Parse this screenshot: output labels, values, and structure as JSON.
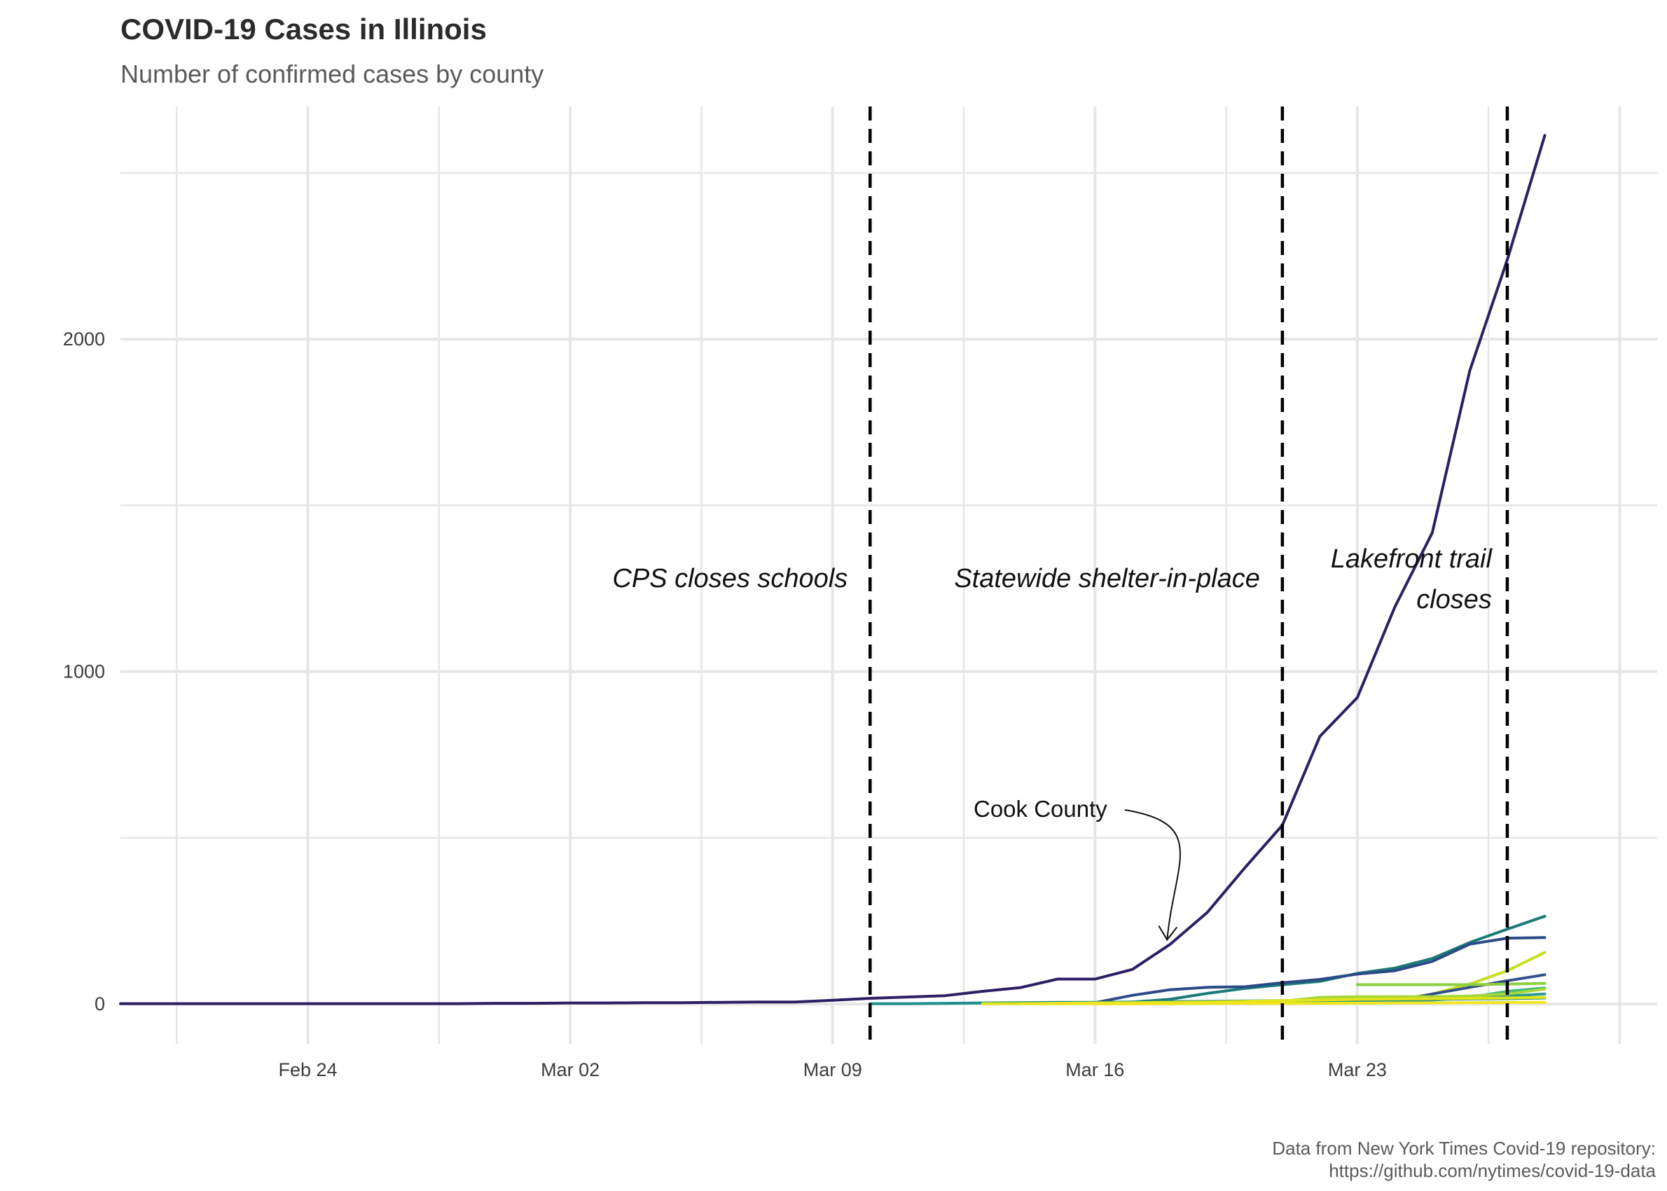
{
  "chart_data": {
    "type": "line",
    "title": "COVID-19 Cases in Illinois",
    "subtitle": "Number of confirmed cases by county",
    "xlabel": "",
    "ylabel": "",
    "x_range": [
      "2020-02-19",
      "2020-03-31"
    ],
    "y_range": [
      -120,
      2700
    ],
    "x_ticks": [
      {
        "date": "2020-02-24",
        "label": "Feb 24"
      },
      {
        "date": "2020-03-02",
        "label": "Mar 02"
      },
      {
        "date": "2020-03-09",
        "label": "Mar 09"
      },
      {
        "date": "2020-03-16",
        "label": "Mar 16"
      },
      {
        "date": "2020-03-23",
        "label": "Mar 23"
      }
    ],
    "y_ticks": [
      0,
      1000,
      2000
    ],
    "grid": true,
    "legend": "none",
    "vlines": [
      {
        "date": "2020-03-10",
        "label": "CPS closes schools",
        "label_side": "left"
      },
      {
        "date": "2020-03-21",
        "label": "Statewide shelter-in-place",
        "label_side": "left"
      },
      {
        "date": "2020-03-27",
        "label": "Lakefront trail closes",
        "label_lines": [
          "Lakefront trail",
          "closes"
        ],
        "label_side": "left"
      }
    ],
    "annotations": [
      {
        "text": "Cook County",
        "arrow_to": {
          "date": "2020-03-18",
          "value": 210
        }
      }
    ],
    "series": [
      {
        "name": "Cook County",
        "color": "#2e1e63",
        "x": [
          "2020-02-19",
          "2020-02-20",
          "2020-02-21",
          "2020-02-22",
          "2020-02-23",
          "2020-02-24",
          "2020-02-25",
          "2020-02-26",
          "2020-02-27",
          "2020-02-28",
          "2020-02-29",
          "2020-03-01",
          "2020-03-02",
          "2020-03-03",
          "2020-03-04",
          "2020-03-05",
          "2020-03-06",
          "2020-03-07",
          "2020-03-08",
          "2020-03-09",
          "2020-03-10",
          "2020-03-11",
          "2020-03-12",
          "2020-03-13",
          "2020-03-14",
          "2020-03-15",
          "2020-03-16",
          "2020-03-17",
          "2020-03-18",
          "2020-03-19",
          "2020-03-20",
          "2020-03-21",
          "2020-03-22",
          "2020-03-23",
          "2020-03-24",
          "2020-03-25",
          "2020-03-26",
          "2020-03-27",
          "2020-03-28"
        ],
        "values": [
          1,
          1,
          1,
          1,
          1,
          1,
          1,
          1,
          1,
          1,
          2,
          2,
          3,
          3,
          4,
          4,
          5,
          6,
          6,
          11,
          17,
          21,
          25,
          38,
          49,
          75,
          75,
          104,
          179,
          276,
          410,
          538,
          805,
          922,
          1194,
          1418,
          1905,
          2239,
          2613
        ]
      },
      {
        "color": "#1a7a78",
        "x": [
          "2020-03-15",
          "2020-03-16",
          "2020-03-17",
          "2020-03-18",
          "2020-03-19",
          "2020-03-20",
          "2020-03-21",
          "2020-03-22",
          "2020-03-23",
          "2020-03-24",
          "2020-03-25",
          "2020-03-26",
          "2020-03-27",
          "2020-03-28"
        ],
        "values": [
          1,
          2,
          6,
          14,
          32,
          47,
          58,
          68,
          92,
          108,
          137,
          185,
          225,
          264
        ]
      },
      {
        "color": "#2b4a87",
        "x": [
          "2020-03-15",
          "2020-03-16",
          "2020-03-17",
          "2020-03-18",
          "2020-03-19",
          "2020-03-20",
          "2020-03-21",
          "2020-03-22",
          "2020-03-23",
          "2020-03-24",
          "2020-03-25",
          "2020-03-26",
          "2020-03-27",
          "2020-03-28"
        ],
        "values": [
          1,
          4,
          26,
          43,
          50,
          52,
          64,
          74,
          90,
          100,
          128,
          180,
          198,
          200
        ]
      },
      {
        "color": "#c7df1f",
        "x": [
          "2020-03-16",
          "2020-03-17",
          "2020-03-18",
          "2020-03-19",
          "2020-03-20",
          "2020-03-21",
          "2020-03-22",
          "2020-03-23",
          "2020-03-24",
          "2020-03-25",
          "2020-03-26",
          "2020-03-27",
          "2020-03-28"
        ],
        "values": [
          1,
          1,
          2,
          3,
          4,
          5,
          6,
          8,
          12,
          30,
          60,
          100,
          155
        ]
      },
      {
        "color": "#31508c",
        "x": [
          "2020-03-21",
          "2020-03-22",
          "2020-03-23",
          "2020-03-24",
          "2020-03-25",
          "2020-03-26",
          "2020-03-27",
          "2020-03-28"
        ],
        "values": [
          3,
          4,
          5,
          8,
          30,
          50,
          70,
          88
        ]
      },
      {
        "color": "#8ccf3f",
        "x": [
          "2020-03-23",
          "2020-03-24",
          "2020-03-25",
          "2020-03-26",
          "2020-03-27",
          "2020-03-28"
        ],
        "values": [
          58,
          58,
          58,
          58,
          60,
          62
        ]
      },
      {
        "color": "#3dbc74",
        "x": [
          "2020-03-24",
          "2020-03-25",
          "2020-03-26",
          "2020-03-27",
          "2020-03-28"
        ],
        "values": [
          10,
          14,
          20,
          38,
          48
        ]
      },
      {
        "color": "#2a9d8f",
        "x": [
          "2020-03-20",
          "2020-03-21",
          "2020-03-22",
          "2020-03-23",
          "2020-03-24",
          "2020-03-25",
          "2020-03-26",
          "2020-03-27",
          "2020-03-28"
        ],
        "values": [
          2,
          3,
          4,
          5,
          8,
          12,
          18,
          24,
          30
        ]
      },
      {
        "color": "#21908c",
        "x": [
          "2020-03-10",
          "2020-03-11",
          "2020-03-12",
          "2020-03-13",
          "2020-03-14",
          "2020-03-15",
          "2020-03-16",
          "2020-03-17",
          "2020-03-18",
          "2020-03-19",
          "2020-03-20",
          "2020-03-21",
          "2020-03-22",
          "2020-03-23",
          "2020-03-24",
          "2020-03-25",
          "2020-03-26",
          "2020-03-27",
          "2020-03-28"
        ],
        "values": [
          1,
          1,
          2,
          3,
          4,
          5,
          5,
          6,
          7,
          8,
          9,
          10,
          11,
          12,
          13,
          14,
          15,
          16,
          18
        ]
      },
      {
        "color": "#a5d63a",
        "x": [
          "2020-03-18",
          "2020-03-19",
          "2020-03-20",
          "2020-03-21",
          "2020-03-22",
          "2020-03-23",
          "2020-03-24",
          "2020-03-25",
          "2020-03-26",
          "2020-03-27",
          "2020-03-28"
        ],
        "values": [
          1,
          2,
          5,
          8,
          20,
          22,
          22,
          22,
          24,
          30,
          45
        ]
      },
      {
        "color": "#e2e418",
        "x": [
          "2020-03-13",
          "2020-03-14",
          "2020-03-15",
          "2020-03-16",
          "2020-03-17",
          "2020-03-18",
          "2020-03-19",
          "2020-03-20",
          "2020-03-21",
          "2020-03-22",
          "2020-03-23",
          "2020-03-24",
          "2020-03-25",
          "2020-03-26",
          "2020-03-27",
          "2020-03-28"
        ],
        "values": [
          1,
          1,
          2,
          3,
          4,
          5,
          6,
          8,
          10,
          12,
          14,
          15,
          16,
          17,
          18,
          20
        ]
      },
      {
        "color": "#f1e51d",
        "x": [
          "2020-03-14",
          "2020-03-16",
          "2020-03-18",
          "2020-03-20",
          "2020-03-22",
          "2020-03-24",
          "2020-03-26",
          "2020-03-28"
        ],
        "values": [
          1,
          1,
          1,
          2,
          2,
          3,
          4,
          5
        ]
      }
    ]
  },
  "caption": {
    "line1": "Data from New York Times Covid-19 repository:",
    "line2": "https://github.com/nytimes/covid-19-data"
  },
  "colors": {
    "grid": "#e6e6e6",
    "vline": "#000000",
    "text": "#2b2b2b"
  }
}
